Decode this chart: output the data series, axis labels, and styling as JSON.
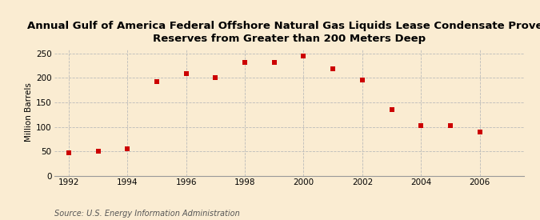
{
  "years": [
    1992,
    1993,
    1994,
    1995,
    1996,
    1997,
    1998,
    1999,
    2000,
    2001,
    2002,
    2003,
    2004,
    2005,
    2006
  ],
  "values": [
    47,
    51,
    56,
    192,
    209,
    201,
    232,
    231,
    245,
    219,
    196,
    135,
    102,
    102,
    90
  ],
  "title_line1": "Annual Gulf of America Federal Offshore Natural Gas Liquids Lease Condensate Proved",
  "title_line2": "Reserves from Greater than 200 Meters Deep",
  "ylabel": "Million Barrels",
  "source": "Source: U.S. Energy Information Administration",
  "marker_color": "#cc0000",
  "marker_shape": "s",
  "marker_size": 4,
  "background_color": "#faecd2",
  "grid_color": "#bbbbbb",
  "xlim": [
    1991.5,
    2007.5
  ],
  "ylim": [
    0,
    260
  ],
  "yticks": [
    0,
    50,
    100,
    150,
    200,
    250
  ],
  "xticks": [
    1992,
    1994,
    1996,
    1998,
    2000,
    2002,
    2004,
    2006
  ],
  "title_fontsize": 9.5,
  "ylabel_fontsize": 7.5,
  "tick_fontsize": 7.5,
  "source_fontsize": 7.0
}
